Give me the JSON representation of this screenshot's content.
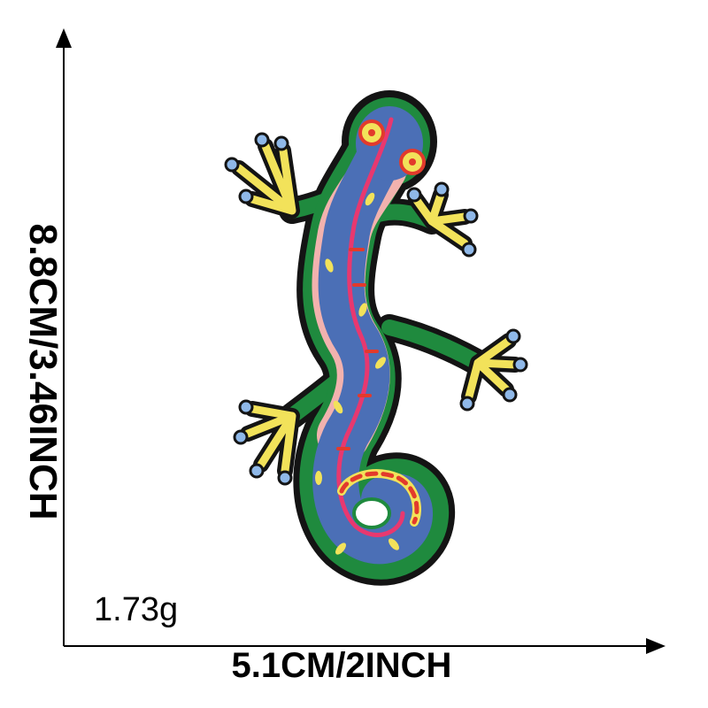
{
  "dimensions": {
    "height": "8.8CM/3.46INCH",
    "width": "5.1CM/2INCH",
    "weight": "1.73g"
  },
  "product": {
    "subject": "gecko embroidered patch",
    "colors": {
      "outline": "#141414",
      "body_blue": "#4b6fb6",
      "trim_green": "#1f8a3e",
      "stripe_pink": "#e8386f",
      "belly_pink": "#f2b2ae",
      "feet_yellow": "#f2e25a",
      "toe_blue": "#8fb8e8",
      "eye_red": "#e23a2c"
    }
  }
}
